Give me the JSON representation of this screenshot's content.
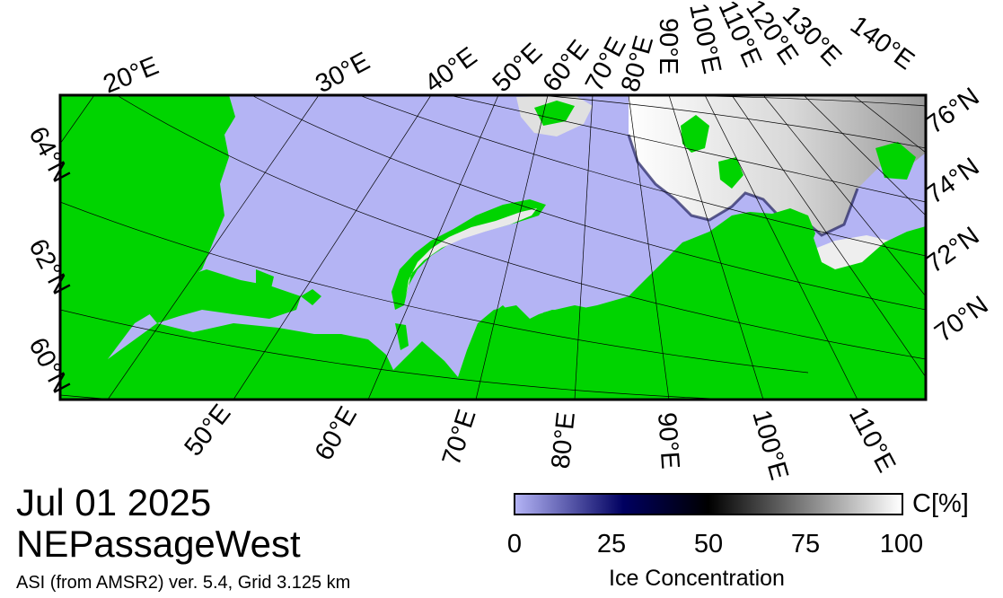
{
  "date": "Jul 01 2025",
  "region": "NEPassageWest",
  "product": "ASI (from AMSR2) ver. 5.4,  Grid 3.125 km",
  "top_lon_labels": [
    "20°E",
    "30°E",
    "40°E",
    "50°E",
    "60°E",
    "70°E",
    "80°E",
    "90°E",
    "100°E",
    "110°E",
    "120°E",
    "130°E",
    "140°E"
  ],
  "bottom_lon_labels": [
    "50°E",
    "60°E",
    "70°E",
    "80°E",
    "90°E",
    "100°E",
    "110°E"
  ],
  "left_lat_labels": [
    "64°N",
    "62°N",
    "60°N"
  ],
  "right_lat_labels": [
    "76°N",
    "74°N",
    "72°N",
    "70°N"
  ],
  "colorbar": {
    "unit": "C[%]",
    "title": "Ice Concentration",
    "ticks": [
      "0",
      "25",
      "50",
      "75",
      "100"
    ],
    "tick_values": [
      0,
      25,
      50,
      75,
      100
    ],
    "colors": [
      "#b3b3f5",
      "#000060",
      "#000000",
      "#ffffff"
    ]
  },
  "colors": {
    "ocean": "#b4b4f4",
    "land": "#00d400",
    "ice": "#e8e8e8",
    "frame": "#000000"
  }
}
